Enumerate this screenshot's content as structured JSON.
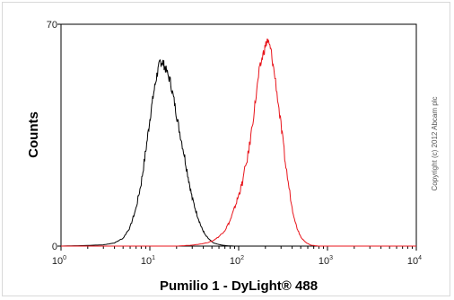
{
  "chart_data": {
    "type": "line",
    "title": "",
    "xlabel": "Pumilio 1 - DyLight® 488",
    "ylabel": "Counts",
    "xscale": "log",
    "xlim": [
      1,
      10000
    ],
    "ylim": [
      0,
      70
    ],
    "x_ticks": [
      {
        "base": "10",
        "exp": "0"
      },
      {
        "base": "10",
        "exp": "1"
      },
      {
        "base": "10",
        "exp": "2"
      },
      {
        "base": "10",
        "exp": "3"
      },
      {
        "base": "10",
        "exp": "4"
      }
    ],
    "y_ticks": [
      "0",
      "70"
    ],
    "grid": false,
    "series": [
      {
        "color": "#000000",
        "x": [
          1,
          2,
          3,
          4,
          5,
          6,
          7,
          8,
          9,
          10,
          11,
          12,
          13,
          14,
          15,
          17,
          19,
          21,
          24,
          27,
          30,
          34,
          38,
          42,
          47,
          52,
          58,
          65,
          75,
          90,
          120,
          10000
        ],
        "y": [
          0,
          0.2,
          0.4,
          1,
          2.5,
          6,
          12,
          20,
          30,
          40,
          48,
          54,
          58,
          58,
          56,
          52,
          45,
          38,
          30,
          22,
          15,
          10,
          6,
          3.5,
          2,
          1,
          0.6,
          0.3,
          0.1,
          0,
          0,
          0
        ]
      },
      {
        "color": "#e8141b",
        "x": [
          1,
          5,
          10,
          20,
          30,
          40,
          50,
          60,
          70,
          80,
          90,
          100,
          110,
          130,
          150,
          170,
          190,
          210,
          230,
          260,
          300,
          340,
          400,
          450,
          500,
          550,
          600,
          650,
          800,
          10000
        ],
        "y": [
          0,
          0,
          0,
          0,
          0.3,
          0.8,
          1.5,
          3,
          5,
          8,
          12,
          16,
          20,
          30,
          43,
          55,
          61,
          65,
          62,
          52,
          38,
          25,
          12,
          6,
          3,
          1.5,
          0.8,
          0.3,
          0,
          0
        ]
      }
    ]
  },
  "copyright": "Copyright (c) 2012 Abcam plc"
}
